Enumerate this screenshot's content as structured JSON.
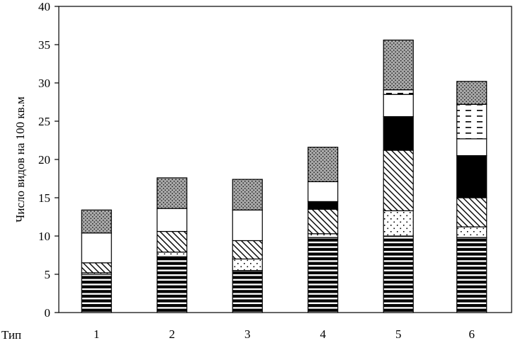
{
  "chart_data": {
    "type": "bar",
    "stacked": true,
    "title": "",
    "xlabel": "Тип",
    "ylabel": "Число видов на 100 кв.м",
    "ylim": [
      0,
      40
    ],
    "yticks": [
      0,
      5,
      10,
      15,
      20,
      25,
      30,
      35,
      40
    ],
    "grid": false,
    "legend": "none",
    "categories": [
      "1",
      "2",
      "3",
      "4",
      "5",
      "6"
    ],
    "series": [
      {
        "pattern": "horizontal-stripes",
        "values": [
          5.0,
          7.3,
          5.5,
          9.8,
          10.0,
          9.8
        ]
      },
      {
        "pattern": "sparse-dots",
        "values": [
          0.2,
          0.6,
          1.5,
          0.5,
          3.3,
          1.4
        ]
      },
      {
        "pattern": "diagonal-hatch",
        "values": [
          1.3,
          2.7,
          2.4,
          3.2,
          7.9,
          3.8
        ]
      },
      {
        "pattern": "solid-black",
        "values": [
          0,
          0,
          0,
          1.0,
          4.4,
          5.5
        ]
      },
      {
        "pattern": "white",
        "values": [
          3.9,
          3.0,
          4.0,
          2.6,
          2.9,
          2.2
        ]
      },
      {
        "pattern": "dashes",
        "values": [
          0,
          0,
          0,
          0,
          0.6,
          4.5
        ]
      },
      {
        "pattern": "dark-dotted",
        "values": [
          3.0,
          4.0,
          4.0,
          4.5,
          6.5,
          3.0
        ]
      }
    ],
    "totals": [
      13.5,
      17.7,
      17.6,
      21.8,
      35.5,
      30.1
    ]
  },
  "colors": {
    "ink": "#000000",
    "background": "#ffffff",
    "dark_dotted": "#b0b0b0"
  }
}
